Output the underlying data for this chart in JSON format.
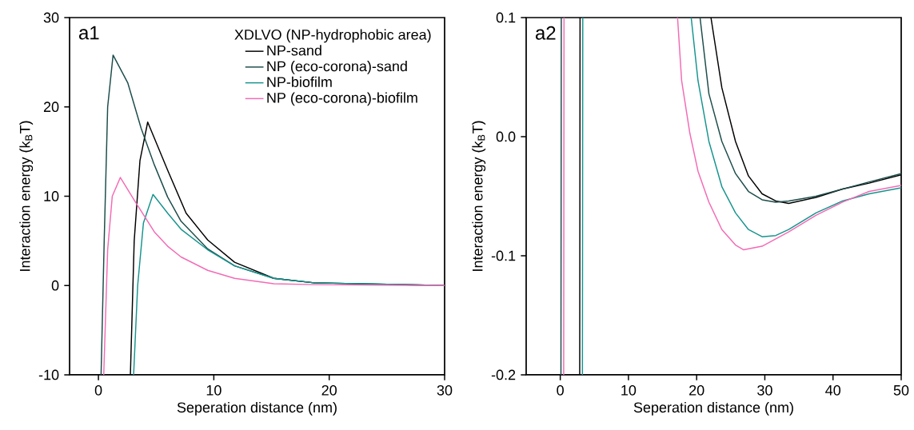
{
  "chart_data": [
    {
      "type": "line",
      "annotations": [
        "a1"
      ],
      "legend_title": "XDLVO (NP-hydrophobic area)",
      "xlabel": "Seperation distance (nm)",
      "ylabel": "Interaction energy (k$_{B}$T)",
      "xlim": [
        -2.5,
        30
      ],
      "ylim": [
        -10,
        30
      ],
      "xticks": [
        0,
        10,
        20,
        30
      ],
      "yticks": [
        -10,
        0,
        10,
        20,
        30
      ],
      "legend": "top right",
      "marker": "none",
      "line_style": "solid",
      "series": [
        {
          "name": "NP-sand",
          "color": "#000000",
          "x": [
            2.77,
            3.1,
            3.6,
            4.27,
            6.0,
            7.6,
            9.47,
            11.8,
            15.2,
            18.7,
            30
          ],
          "values": [
            -10,
            5,
            14,
            18.3,
            12.9,
            8.1,
            5.1,
            2.6,
            0.8,
            0.3,
            0
          ]
        },
        {
          "name": "NP (eco-corona)-sand",
          "color": "#1b4d4a",
          "x": [
            0.23,
            0.5,
            0.8,
            1.27,
            2.54,
            3.7,
            4.85,
            6.0,
            7.16,
            9.47,
            11.8,
            15.2,
            18.7,
            30
          ],
          "values": [
            -10,
            5,
            20,
            25.8,
            22.7,
            17.6,
            13.5,
            9.9,
            7.2,
            4.1,
            2.2,
            0.8,
            0.3,
            0
          ]
        },
        {
          "name": "NP-biofilm",
          "color": "#16948e",
          "x": [
            3.05,
            3.4,
            3.9,
            4.73,
            6.0,
            7.16,
            9.47,
            11.8,
            15.2,
            18.7,
            30
          ],
          "values": [
            -10,
            0,
            7,
            10.2,
            8.1,
            6.3,
            4.0,
            2.2,
            0.8,
            0.3,
            0
          ]
        },
        {
          "name": "NP (eco-corona)-biofilm",
          "color": "#f36bb5",
          "x": [
            0.46,
            0.8,
            1.2,
            1.9,
            3.23,
            4.85,
            6.0,
            7.16,
            9.47,
            11.8,
            15.2,
            18.7,
            30
          ],
          "values": [
            -10,
            4,
            10,
            12.1,
            9.3,
            6.0,
            4.4,
            3.2,
            1.7,
            0.8,
            0.2,
            0.1,
            0
          ]
        }
      ]
    },
    {
      "type": "line",
      "annotations": [
        "a2"
      ],
      "xlabel": "Seperation distance (nm)",
      "ylabel": "Interaction energy (k$_{B}$T)",
      "xlim": [
        -5,
        50
      ],
      "ylim": [
        -0.2,
        0.1
      ],
      "xticks": [
        0,
        10,
        20,
        30,
        40,
        50
      ],
      "yticks": [
        -0.2,
        -0.1,
        {
          "value": 0,
          "label": "0.0"
        },
        0.1
      ],
      "marker": "none",
      "line_style": "solid",
      "series": [
        {
          "color": "#000000",
          "x": [
            2.85,
            2.9,
            2.95,
            22.1,
            23.7,
            25.7,
            27.6,
            29.6,
            31.6,
            33.5,
            37.5,
            41.4,
            45.3,
            50
          ],
          "values": [
            -0.2,
            0.1,
            null,
            0.1,
            0.041,
            -0.004,
            -0.033,
            -0.048,
            -0.054,
            -0.056,
            -0.051,
            -0.044,
            -0.039,
            -0.032
          ]
        },
        {
          "color": "#1b4d4a",
          "x": [
            0.1,
            0.15,
            0.2,
            20.5,
            21.8,
            23.7,
            25.7,
            27.6,
            29.6,
            31.6,
            33.5,
            37.5,
            41.4,
            45.3,
            50
          ],
          "values": [
            -0.2,
            0.1,
            null,
            0.1,
            0.036,
            -0.004,
            -0.031,
            -0.046,
            -0.053,
            -0.055,
            -0.054,
            -0.05,
            -0.044,
            -0.038,
            -0.031
          ]
        },
        {
          "color": "#16948e",
          "x": [
            3.25,
            3.3,
            3.35,
            19.2,
            20.2,
            21.8,
            23.7,
            25.7,
            27.6,
            29.6,
            31.6,
            33.5,
            37.5,
            41.4,
            45.3,
            50
          ],
          "values": [
            -0.2,
            0.1,
            null,
            0.1,
            0.047,
            -0.004,
            -0.042,
            -0.064,
            -0.078,
            -0.084,
            -0.083,
            -0.078,
            -0.064,
            -0.054,
            -0.048,
            -0.043
          ]
        },
        {
          "color": "#f36bb5",
          "x": [
            0.5,
            0.55,
            0.6,
            17.2,
            17.8,
            19.0,
            20.2,
            21.8,
            23.7,
            25.7,
            26.9,
            29.6,
            33.5,
            37.5,
            41.4,
            45.3,
            50
          ],
          "values": [
            -0.2,
            0.1,
            null,
            0.1,
            0.047,
            0.003,
            -0.029,
            -0.055,
            -0.078,
            -0.091,
            -0.095,
            -0.092,
            -0.08,
            -0.066,
            -0.055,
            -0.046,
            -0.041
          ]
        }
      ]
    }
  ]
}
